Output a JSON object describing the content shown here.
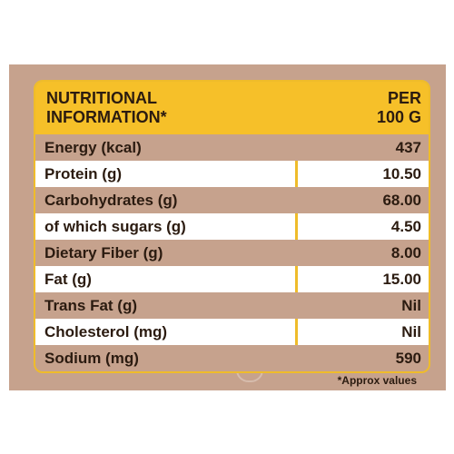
{
  "header": {
    "left_title": "NUTRITIONAL\nINFORMATION*",
    "right_title": "PER\n100 G"
  },
  "rows": [
    {
      "name": "Energy (kcal)",
      "value": "437"
    },
    {
      "name": "Protein (g)",
      "value": "10.50"
    },
    {
      "name": "Carbohydrates (g)",
      "value": "68.00"
    },
    {
      "name": "of which sugars (g)",
      "value": "4.50"
    },
    {
      "name": "Dietary Fiber (g)",
      "value": "8.00"
    },
    {
      "name": "Fat (g)",
      "value": "15.00"
    },
    {
      "name": "Trans Fat (g)",
      "value": "Nil"
    },
    {
      "name": "Cholesterol (mg)",
      "value": "Nil"
    },
    {
      "name": "Sodium (mg)",
      "value": "590"
    }
  ],
  "footnote": "*Approx values",
  "colors": {
    "panel": "#c6a28d",
    "header": "#f6c029",
    "border": "#efbc2a",
    "text": "#2b1b10"
  }
}
